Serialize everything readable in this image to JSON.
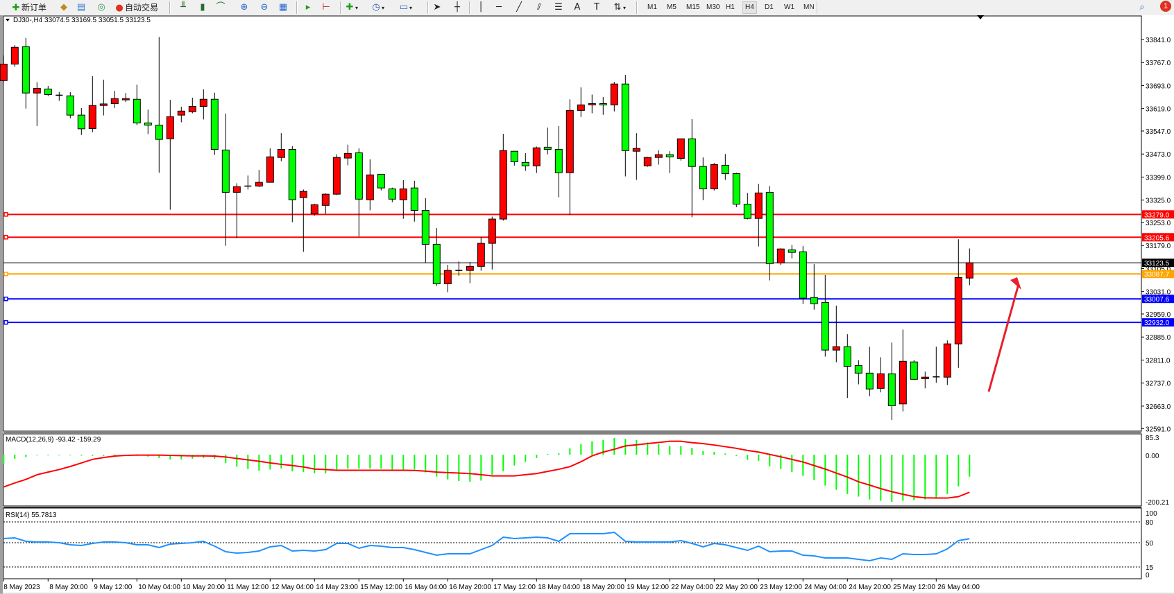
{
  "toolbar": {
    "new_order_label": "新订单",
    "auto_trading_label": "自动交易",
    "icons": [
      "new-order-icon",
      "metaeditor-icon",
      "history-icon",
      "signal-icon",
      "auto-trading-icon",
      "bar-chart-icon",
      "candlestick-icon",
      "line-chart-icon",
      "zoom-in-icon",
      "zoom-out-icon",
      "tile-windows-icon",
      "auto-scroll-icon",
      "chart-shift-icon",
      "indicators-icon",
      "periods-icon",
      "templates-icon",
      "cursor-icon",
      "crosshair-icon",
      "vertical-line-icon",
      "horizontal-line-icon",
      "trendline-icon",
      "channel-icon",
      "fibonacci-icon",
      "text-icon",
      "text-label-icon",
      "arrows-icon"
    ],
    "timeframes": [
      "M1",
      "M5",
      "M15",
      "M30",
      "H1",
      "H4",
      "D1",
      "W1",
      "MN"
    ],
    "active_timeframe": "H4",
    "notification_count": "1"
  },
  "chart": {
    "symbol_label": "DJ30-,H4",
    "ohlc_header": "33074.5 33169.5 33051.5 33123.5",
    "bull_color": "#ff0000",
    "bear_color": "#00ff00",
    "price_axis": [
      "33841.0",
      "33767.0",
      "33693.0",
      "33619.0",
      "33547.0",
      "33473.0",
      "33399.0",
      "33325.0",
      "33253.0",
      "33179.0",
      "33105.0",
      "33031.0",
      "32959.0",
      "32885.0",
      "32811.0",
      "32737.0",
      "32663.0",
      "32591.0"
    ],
    "current_price": {
      "value": 33123.5,
      "label": "33123.5",
      "color": "#000000"
    },
    "levels": [
      {
        "value": 33279.0,
        "label": "33279.0",
        "color": "#ff0000"
      },
      {
        "value": 33205.6,
        "label": "33205.6",
        "color": "#ff0000"
      },
      {
        "value": 33087.7,
        "label": "33087.7",
        "color": "#ffa500"
      },
      {
        "value": 33007.6,
        "label": "33007.6",
        "color": "#0000ff"
      },
      {
        "value": 32932.0,
        "label": "32932.0",
        "color": "#0000ff"
      }
    ],
    "arrow_annotation": {
      "color": "#e8202a",
      "direction": "up"
    },
    "time_axis": [
      "8 May 2023",
      "8 May 20:00",
      "9 May 12:00",
      "10 May 04:00",
      "10 May 20:00",
      "11 May 12:00",
      "12 May 04:00",
      "14 May 23:00",
      "15 May 12:00",
      "16 May 04:00",
      "16 May 20:00",
      "17 May 12:00",
      "18 May 04:00",
      "18 May 20:00",
      "19 May 12:00",
      "22 May 04:00",
      "22 May 20:00",
      "23 May 12:00",
      "24 May 04:00",
      "24 May 20:00",
      "25 May 12:00",
      "26 May 04:00"
    ],
    "candles_ohlc": [
      [
        33709,
        33790,
        33704,
        33762
      ],
      [
        33762,
        33823,
        33753,
        33816
      ],
      [
        33818,
        33846,
        33619,
        33669
      ],
      [
        33669,
        33704,
        33563,
        33684
      ],
      [
        33682,
        33692,
        33659,
        33664
      ],
      [
        33662,
        33672,
        33644,
        33661
      ],
      [
        33660,
        33672,
        33588,
        33598
      ],
      [
        33598,
        33621,
        33534,
        33554
      ],
      [
        33555,
        33723,
        33543,
        33629
      ],
      [
        33629,
        33712,
        33597,
        33634
      ],
      [
        33635,
        33676,
        33621,
        33651
      ],
      [
        33647,
        33669,
        33640,
        33651
      ],
      [
        33649,
        33696,
        33566,
        33573
      ],
      [
        33573,
        33616,
        33537,
        33566
      ],
      [
        33566,
        33849,
        33413,
        33520
      ],
      [
        33522,
        33647,
        33294,
        33593
      ],
      [
        33598,
        33625,
        33575,
        33611
      ],
      [
        33609,
        33654,
        33604,
        33626
      ],
      [
        33626,
        33681,
        33584,
        33649
      ],
      [
        33649,
        33670,
        33470,
        33488
      ],
      [
        33486,
        33603,
        33178,
        33350
      ],
      [
        33350,
        33379,
        33203,
        33368
      ],
      [
        33370,
        33404,
        33359,
        33370
      ],
      [
        33370,
        33422,
        33367,
        33382
      ],
      [
        33382,
        33491,
        33382,
        33464
      ],
      [
        33462,
        33540,
        33450,
        33488
      ],
      [
        33488,
        33498,
        33254,
        33326
      ],
      [
        33333,
        33359,
        33159,
        33353
      ],
      [
        33281,
        33313,
        33275,
        33310
      ],
      [
        33308,
        33347,
        33281,
        33344
      ],
      [
        33344,
        33472,
        33341,
        33462
      ],
      [
        33460,
        33503,
        33437,
        33475
      ],
      [
        33477,
        33491,
        33208,
        33328
      ],
      [
        33326,
        33456,
        33292,
        33406
      ],
      [
        33408,
        33408,
        33356,
        33364
      ],
      [
        33361,
        33365,
        33318,
        33328
      ],
      [
        33326,
        33389,
        33265,
        33361
      ],
      [
        33364,
        33387,
        33256,
        33292
      ],
      [
        33292,
        33331,
        33124,
        33183
      ],
      [
        33183,
        33235,
        33049,
        33056
      ],
      [
        33056,
        33117,
        33029,
        33099
      ],
      [
        33099,
        33128,
        33082,
        33099
      ],
      [
        33099,
        33126,
        33058,
        33112
      ],
      [
        33112,
        33206,
        33098,
        33186
      ],
      [
        33186,
        33272,
        33102,
        33264
      ],
      [
        33264,
        33538,
        33259,
        33484
      ],
      [
        33482,
        33482,
        33436,
        33448
      ],
      [
        33446,
        33476,
        33419,
        33435
      ],
      [
        33435,
        33497,
        33412,
        33493
      ],
      [
        33495,
        33558,
        33472,
        33488
      ],
      [
        33488,
        33563,
        33334,
        33413
      ],
      [
        33413,
        33649,
        33277,
        33613
      ],
      [
        33613,
        33687,
        33592,
        33631
      ],
      [
        33631,
        33664,
        33604,
        33635
      ],
      [
        33635,
        33656,
        33599,
        33631
      ],
      [
        33631,
        33705,
        33610,
        33698
      ],
      [
        33698,
        33727,
        33401,
        33484
      ],
      [
        33482,
        33540,
        33390,
        33491
      ],
      [
        33435,
        33464,
        33432,
        33462
      ],
      [
        33462,
        33485,
        33439,
        33471
      ],
      [
        33471,
        33482,
        33412,
        33464
      ],
      [
        33459,
        33522,
        33452,
        33522
      ],
      [
        33522,
        33585,
        33270,
        33433
      ],
      [
        33433,
        33462,
        33325,
        33361
      ],
      [
        33361,
        33444,
        33356,
        33439
      ],
      [
        33437,
        33473,
        33390,
        33410
      ],
      [
        33410,
        33413,
        33302,
        33312
      ],
      [
        33312,
        33348,
        33263,
        33266
      ],
      [
        33266,
        33377,
        33176,
        33348
      ],
      [
        33350,
        33370,
        33067,
        33121
      ],
      [
        33123,
        33170,
        33117,
        33168
      ],
      [
        33165,
        33181,
        33138,
        33157
      ],
      [
        33159,
        33177,
        32991,
        33010
      ],
      [
        33012,
        33119,
        32973,
        32992
      ],
      [
        32996,
        33084,
        32822,
        32843
      ],
      [
        32843,
        32986,
        32804,
        32854
      ],
      [
        32854,
        32894,
        32689,
        32791
      ],
      [
        32793,
        32811,
        32733,
        32769
      ],
      [
        32769,
        32854,
        32695,
        32718
      ],
      [
        32720,
        32820,
        32707,
        32767
      ],
      [
        32767,
        32867,
        32618,
        32664
      ],
      [
        32670,
        32909,
        32646,
        32807
      ],
      [
        32805,
        32811,
        32747,
        32749
      ],
      [
        32751,
        32774,
        32720,
        32756
      ],
      [
        32757,
        32854,
        32738,
        32757
      ],
      [
        32756,
        32874,
        32731,
        32863
      ],
      [
        32863,
        33199,
        32786,
        33076
      ],
      [
        33074.5,
        33169.5,
        33051.5,
        33123.5
      ]
    ]
  },
  "macd": {
    "label": "MACD(12,26,9) -93.42 -159.29",
    "axis_labels": [
      "85.3",
      "0.00",
      "-200.21"
    ],
    "histogram_color": "#00ff00",
    "signal_color": "#ff0000",
    "histogram": [
      -41,
      -17,
      -10,
      -3,
      -2,
      -2,
      -3,
      -4,
      -5,
      -5,
      -5,
      -6,
      -5,
      -8,
      -14,
      -20,
      -20,
      -17,
      -14,
      -17,
      -36,
      -51,
      -61,
      -68,
      -63,
      -58,
      -71,
      -74,
      -79,
      -79,
      -63,
      -59,
      -59,
      -59,
      -59,
      -63,
      -63,
      -63,
      -75,
      -93,
      -105,
      -112,
      -115,
      -110,
      -85,
      -71,
      -46,
      -31,
      -14,
      3,
      6,
      27,
      45,
      57,
      62,
      71,
      67,
      62,
      52,
      44,
      37,
      37,
      29,
      15,
      12,
      5,
      -5,
      -22,
      -26,
      -49,
      -61,
      -74,
      -90,
      -108,
      -131,
      -149,
      -167,
      -178,
      -190,
      -196,
      -200,
      -196,
      -193,
      -190,
      -183,
      -167,
      -134,
      -93.42
    ],
    "signal": [
      -137,
      -120,
      -105,
      -85,
      -74,
      -63,
      -50,
      -35,
      -20,
      -12,
      -6,
      -3,
      -2,
      -2,
      -2,
      -3,
      -4,
      -5,
      -5,
      -6,
      -10,
      -16,
      -22,
      -28,
      -35,
      -41,
      -46,
      -52,
      -61,
      -63,
      -66,
      -66,
      -66,
      -66,
      -66,
      -66,
      -66,
      -67,
      -70,
      -74,
      -76,
      -78,
      -80,
      -85,
      -90,
      -90,
      -90,
      -85,
      -80,
      -71,
      -62,
      -51,
      -30,
      -5,
      11,
      23,
      37,
      42,
      47,
      52,
      57,
      57,
      51,
      47,
      41,
      34,
      27,
      18,
      11,
      1,
      -9,
      -20,
      -31,
      -46,
      -61,
      -78,
      -95,
      -115,
      -129,
      -144,
      -157,
      -168,
      -178,
      -183,
      -184,
      -184,
      -178,
      -159.29
    ]
  },
  "rsi": {
    "label": "RSI(14) 55.7813",
    "axis_labels": [
      "100",
      "80",
      "50",
      "15",
      "0"
    ],
    "levels": [
      80,
      50,
      15
    ],
    "line_color": "#1e90ff",
    "values": [
      56,
      57,
      52,
      51,
      51,
      50,
      47,
      46,
      49,
      51,
      51,
      50,
      47,
      47,
      43,
      48,
      49,
      50,
      52,
      45,
      37,
      35,
      36,
      38,
      44,
      46,
      38,
      39,
      38,
      40,
      49,
      49,
      42,
      46,
      45,
      43,
      43,
      40,
      36,
      32,
      34,
      34,
      34,
      40,
      46,
      58,
      56,
      57,
      58,
      57,
      52,
      63,
      63,
      63,
      63,
      65,
      52,
      51,
      51,
      51,
      51,
      53,
      49,
      44,
      49,
      47,
      43,
      39,
      45,
      37,
      38,
      38,
      32,
      31,
      28,
      28,
      28,
      26,
      24,
      28,
      26,
      34,
      33,
      33,
      34,
      41,
      53,
      55.78
    ]
  }
}
